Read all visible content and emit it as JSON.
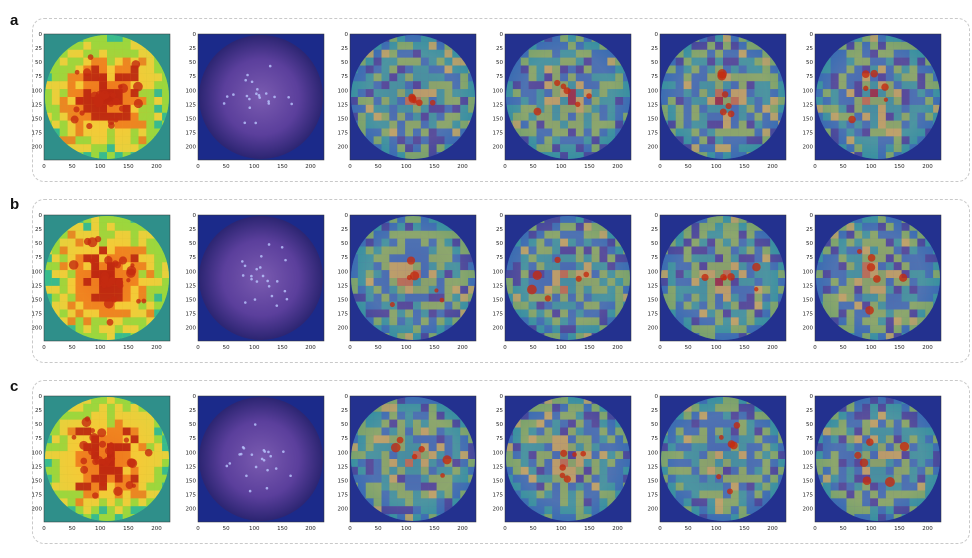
{
  "figure": {
    "rows": [
      {
        "label": "a",
        "panels": [
          {
            "kind": "heatmap-dense"
          },
          {
            "kind": "fundus"
          },
          {
            "kind": "attention"
          },
          {
            "kind": "attention"
          },
          {
            "kind": "attention"
          },
          {
            "kind": "attention"
          }
        ]
      },
      {
        "label": "b",
        "panels": [
          {
            "kind": "heatmap-dense"
          },
          {
            "kind": "fundus"
          },
          {
            "kind": "attention"
          },
          {
            "kind": "attention"
          },
          {
            "kind": "attention"
          },
          {
            "kind": "attention"
          }
        ]
      },
      {
        "label": "c",
        "panels": [
          {
            "kind": "heatmap-dense"
          },
          {
            "kind": "fundus"
          },
          {
            "kind": "attention"
          },
          {
            "kind": "attention"
          },
          {
            "kind": "attention"
          },
          {
            "kind": "attention"
          }
        ]
      }
    ],
    "x_ticks": [
      "0",
      "50",
      "100",
      "150",
      "200"
    ],
    "y_ticks": [
      "0",
      "25",
      "50",
      "75",
      "100",
      "125",
      "150",
      "175",
      "200"
    ],
    "colormap": [
      "#30123b",
      "#3e3891",
      "#2a7ab9",
      "#27b89a",
      "#9bd93c",
      "#f5d13a",
      "#f07f1e",
      "#b81e0e"
    ]
  }
}
